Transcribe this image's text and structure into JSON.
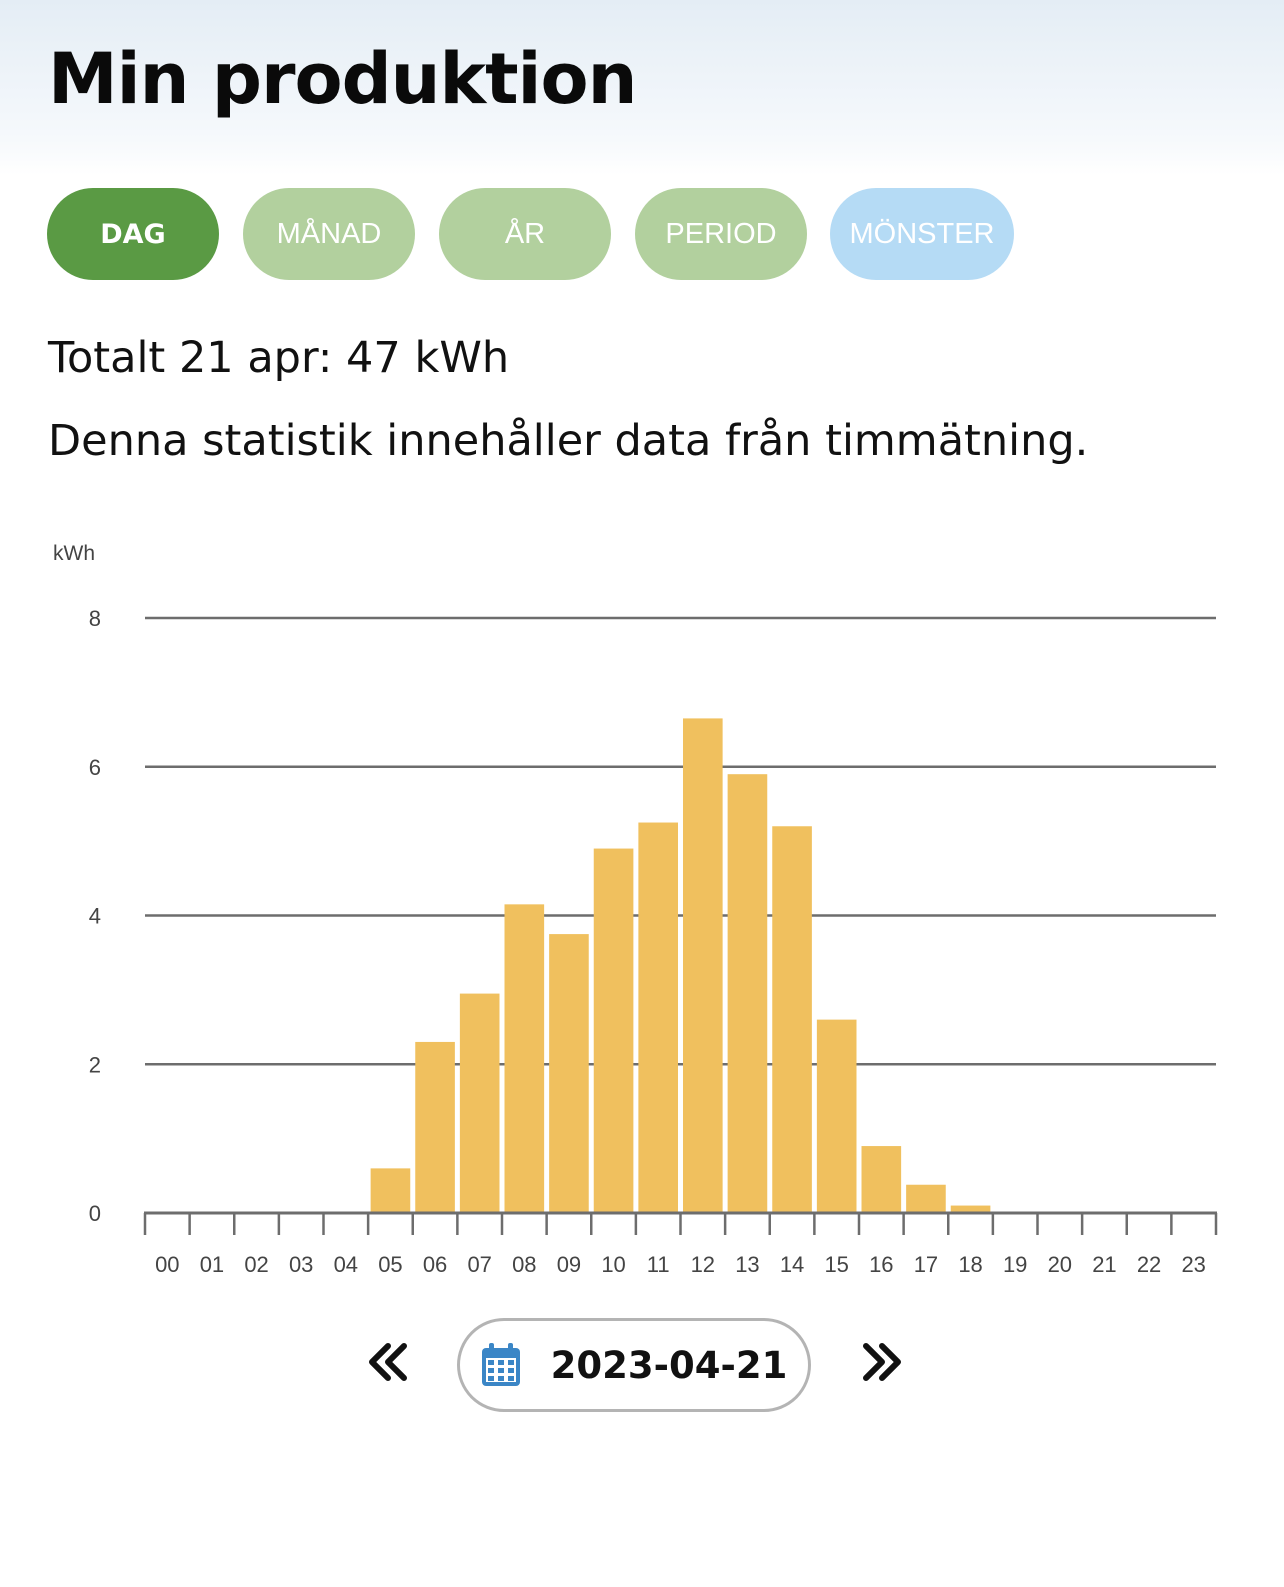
{
  "page": {
    "title": "Min produktion"
  },
  "tabs": [
    {
      "label": "DAG",
      "active": true,
      "color": "#5a9a44"
    },
    {
      "label": "MÅNAD",
      "active": false,
      "color": "#b2d09e"
    },
    {
      "label": "ÅR",
      "active": false,
      "color": "#b2d09e"
    },
    {
      "label": "PERIOD",
      "active": false,
      "color": "#b2d09e"
    },
    {
      "label": "MÖNSTER",
      "active": false,
      "color": "#b5dbf5"
    }
  ],
  "summary": {
    "total_text": "Totalt 21 apr: 47 kWh",
    "info_text": "Denna statistik innehåller data från timmätning."
  },
  "chart_data": {
    "type": "bar",
    "ylabel": "kWh",
    "ylim": [
      0,
      8
    ],
    "yticks": [
      0,
      2,
      4,
      6,
      8
    ],
    "grid": true,
    "bar_color": "#f0c05e",
    "categories": [
      "00",
      "01",
      "02",
      "03",
      "04",
      "05",
      "06",
      "07",
      "08",
      "09",
      "10",
      "11",
      "12",
      "13",
      "14",
      "15",
      "16",
      "17",
      "18",
      "19",
      "20",
      "21",
      "22",
      "23"
    ],
    "values": [
      0,
      0,
      0,
      0,
      0,
      0.6,
      2.3,
      2.95,
      4.15,
      3.75,
      4.9,
      5.25,
      6.65,
      5.9,
      5.2,
      2.6,
      0.9,
      0.38,
      0.1,
      0,
      0,
      0,
      0,
      0
    ]
  },
  "date_nav": {
    "date": "2023-04-21",
    "prev_icon": "double-chevron-left-icon",
    "next_icon": "double-chevron-right-icon",
    "calendar_icon": "calendar-icon",
    "calendar_color": "#3b86c6"
  }
}
